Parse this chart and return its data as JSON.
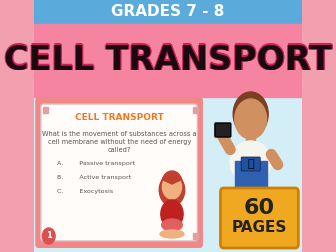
{
  "bg_pink": "#f2a0b0",
  "top_bar_color": "#5aabdc",
  "top_bar_text": "GRADES 7 - 8",
  "top_bar_text_color": "#ffffff",
  "main_title": "CELL TRANSPORT",
  "main_title_shadow_color": "#cc2255",
  "main_title_color": "#1a0a10",
  "main_bg_color": "#f484a0",
  "bottom_bg_color": "#d4eef8",
  "card_outer_color": "#f08888",
  "card_inner_color": "#fffcfa",
  "card_title": "CELL TRANSPORT",
  "card_title_color": "#f07820",
  "card_question_line1": "What is the movement of substances across a",
  "card_question_line2": "cell membrane without the need of energy",
  "card_question_line3": "called?",
  "card_question_color": "#555555",
  "card_option_A": "A.        Passive transport",
  "card_option_B": "B.        Active transport",
  "card_option_C": "C.        Exocytosis",
  "card_options_color": "#555555",
  "pages_box_color": "#f0a820",
  "pages_box_border": "#d08000",
  "pages_line1": "60",
  "pages_line2": "PAGES",
  "pages_text_color": "#222222",
  "circle_color": "#d85050",
  "circle_text": "1",
  "circle_text_color": "#ffffff",
  "girl_hair_color": "#c04030",
  "girl_skin_color": "#f0b080",
  "girl_dress_color": "#c02020",
  "girl_book_color": "#e06060",
  "boy_hair_color": "#7a4020",
  "boy_skin_color": "#d09060",
  "boy_shirt_color": "#f5f5f0",
  "boy_pants_color": "#3060b0",
  "boy_car_color": "#2050a0"
}
